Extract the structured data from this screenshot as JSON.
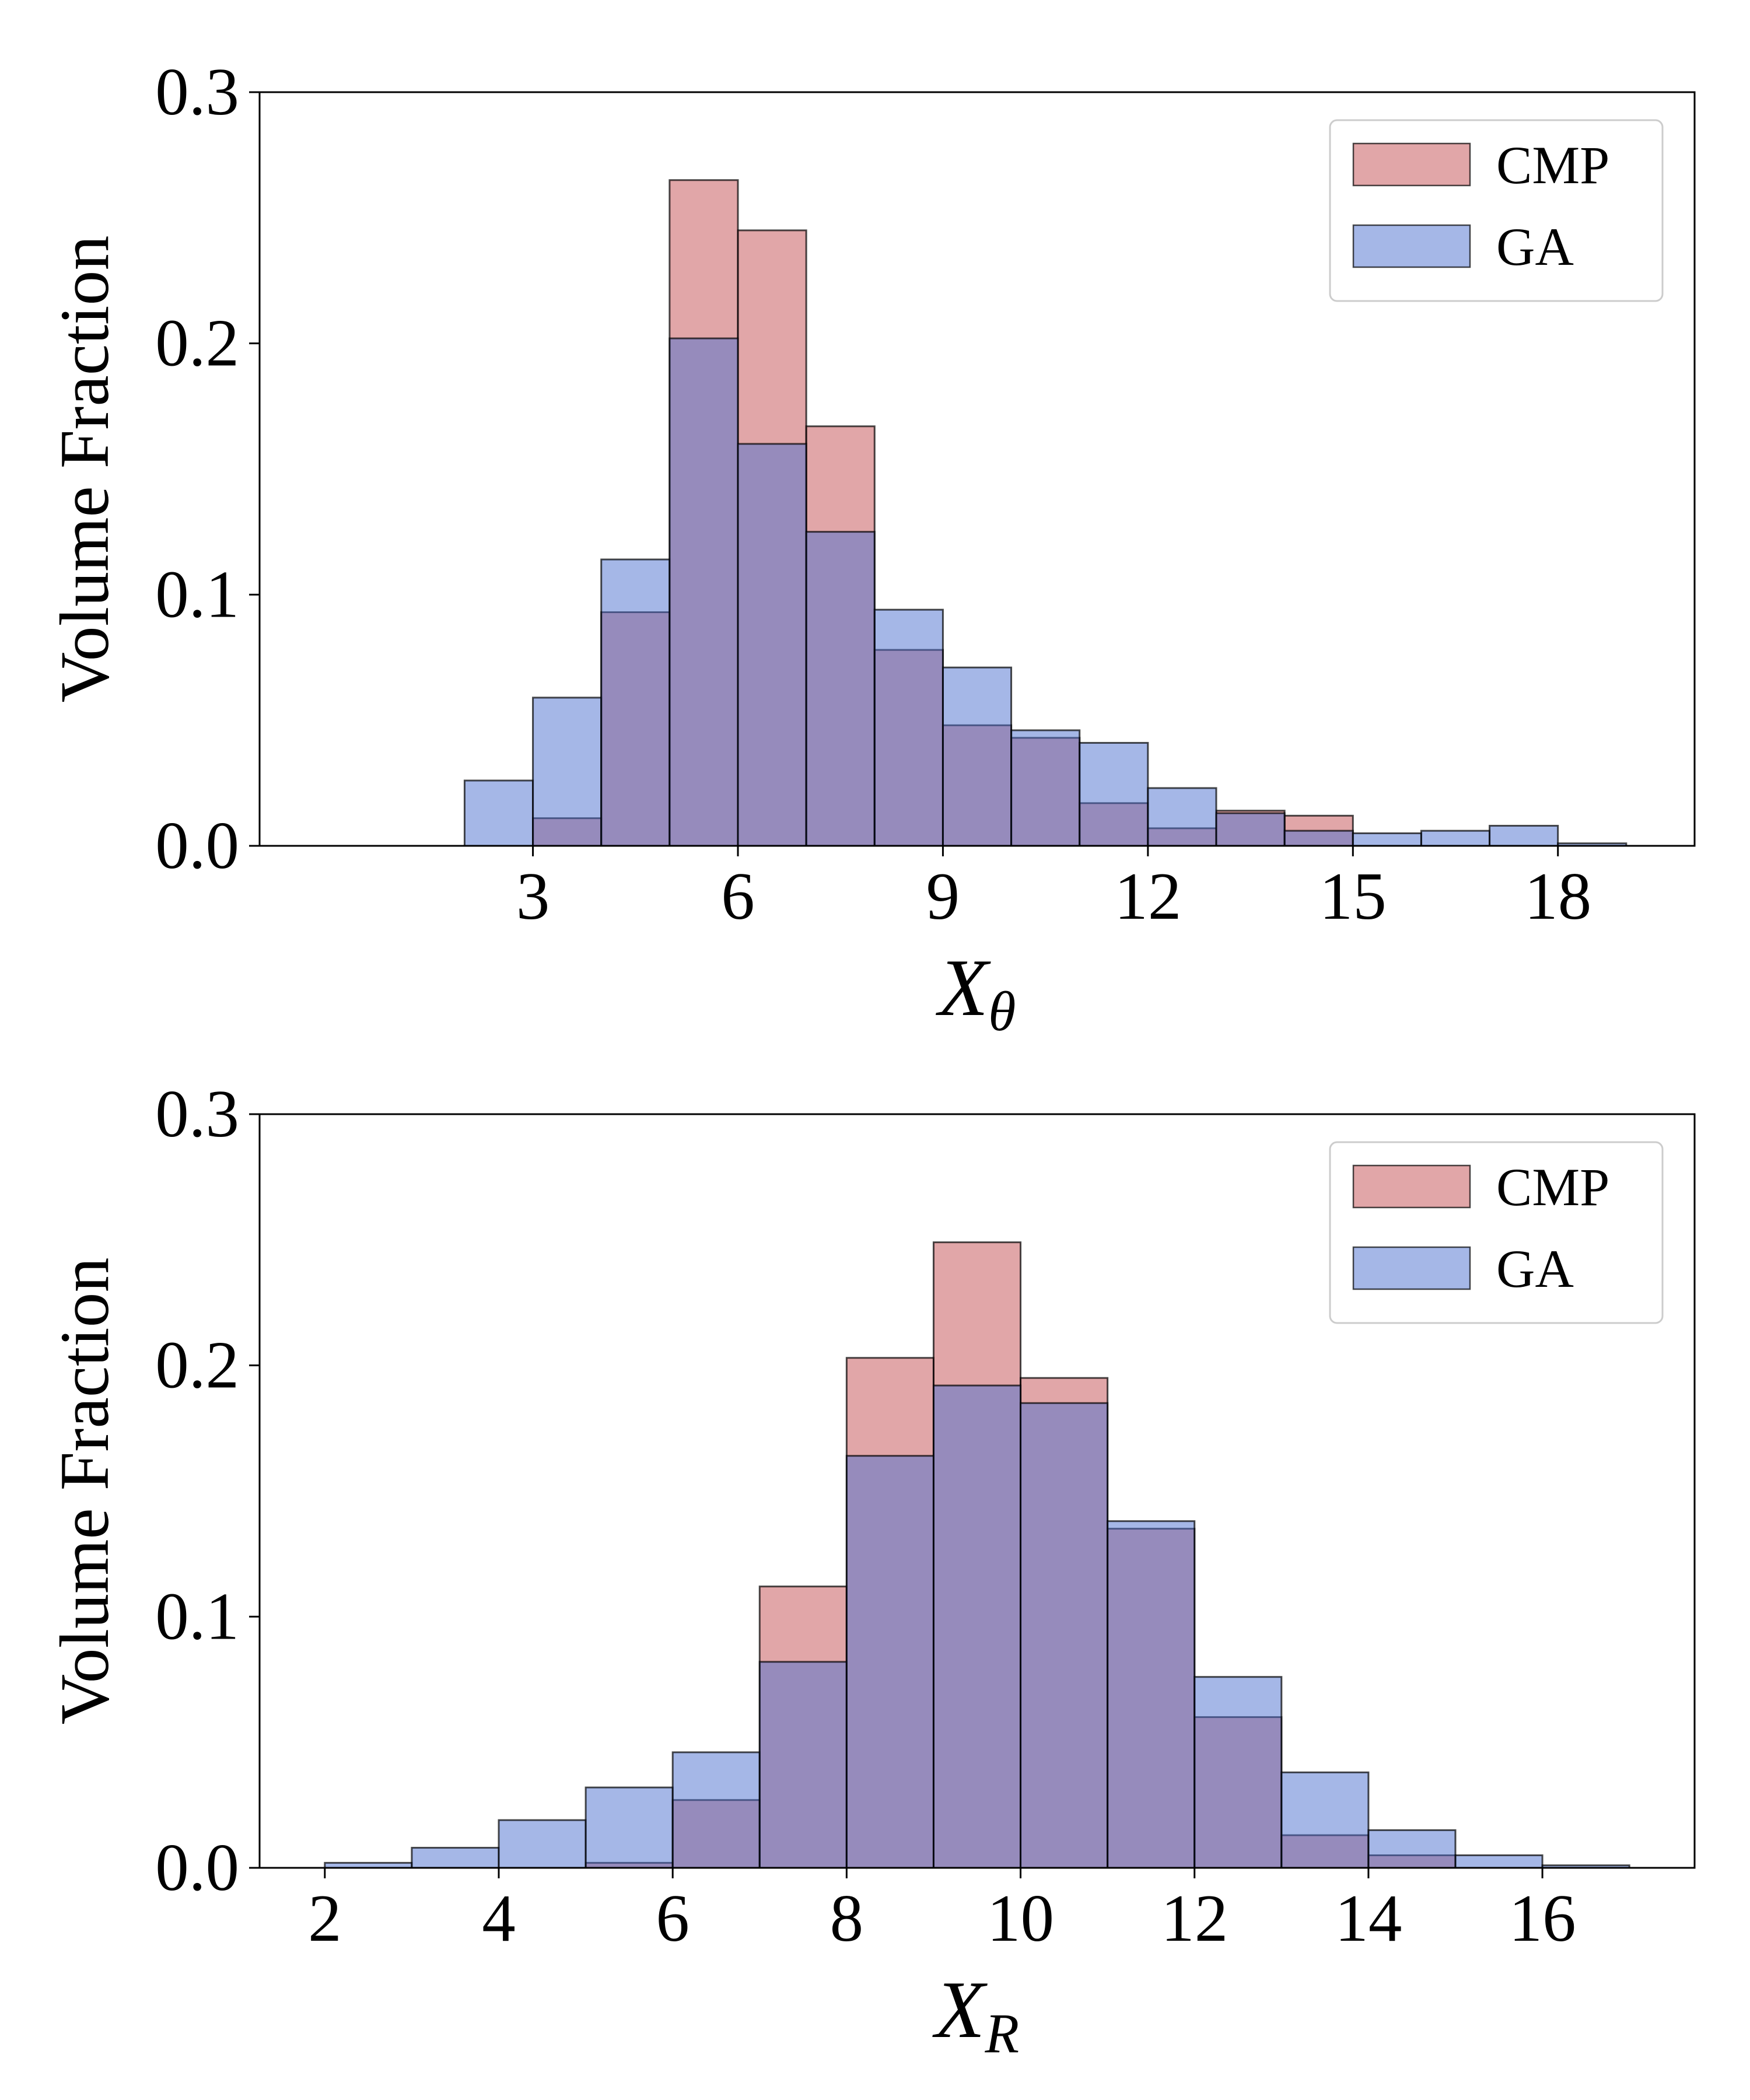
{
  "colors": {
    "CMP": "#c44e52",
    "GA": "#4c6fd0",
    "bar_edge": "#000000"
  },
  "chart_data": [
    {
      "type": "bar",
      "histogram": true,
      "xlabel": "X",
      "xlabel_sub": "θ",
      "ylabel": "Volume Fraction",
      "ylim": [
        0,
        0.3
      ],
      "xlim": [
        -1.0,
        20.0
      ],
      "yticks": [
        0.0,
        0.1,
        0.2,
        0.3
      ],
      "ytick_labels": [
        "0.0",
        "0.1",
        "0.2",
        "0.3"
      ],
      "xticks": [
        3,
        6,
        9,
        12,
        15,
        18
      ],
      "xtick_labels": [
        "3",
        "6",
        "9",
        "12",
        "15",
        "18"
      ],
      "legend_position": "top-right",
      "bin_edges": [
        2,
        3,
        4,
        5,
        6,
        7,
        8,
        9,
        10,
        11,
        12,
        13,
        14,
        15,
        16,
        17,
        18,
        19
      ],
      "series": [
        {
          "name": "CMP",
          "values": [
            0.0,
            0.011,
            0.093,
            0.265,
            0.245,
            0.167,
            0.078,
            0.048,
            0.043,
            0.017,
            0.007,
            0.014,
            0.012,
            0.0,
            0.0,
            0.0,
            0.0
          ]
        },
        {
          "name": "GA",
          "values": [
            0.026,
            0.059,
            0.114,
            0.202,
            0.16,
            0.125,
            0.094,
            0.071,
            0.046,
            0.041,
            0.023,
            0.013,
            0.006,
            0.005,
            0.006,
            0.008,
            0.001
          ]
        }
      ]
    },
    {
      "type": "bar",
      "histogram": true,
      "xlabel": "X",
      "xlabel_sub": "R",
      "ylabel": "Volume Fraction",
      "ylim": [
        0,
        0.3
      ],
      "xlim": [
        1.25,
        17.75
      ],
      "yticks": [
        0.0,
        0.1,
        0.2,
        0.3
      ],
      "ytick_labels": [
        "0.0",
        "0.1",
        "0.2",
        "0.3"
      ],
      "xticks": [
        2,
        4,
        6,
        8,
        10,
        12,
        14,
        16
      ],
      "xtick_labels": [
        "2",
        "4",
        "6",
        "8",
        "10",
        "12",
        "14",
        "16"
      ],
      "legend_position": "top-right",
      "bin_edges": [
        2,
        3,
        4,
        5,
        6,
        7,
        8,
        9,
        10,
        11,
        12,
        13,
        14,
        15,
        16,
        17
      ],
      "series": [
        {
          "name": "CMP",
          "values": [
            0.0,
            0.0,
            0.0,
            0.002,
            0.027,
            0.112,
            0.203,
            0.249,
            0.195,
            0.135,
            0.06,
            0.013,
            0.005,
            0.0,
            0.0
          ]
        },
        {
          "name": "GA",
          "values": [
            0.002,
            0.008,
            0.019,
            0.032,
            0.046,
            0.082,
            0.164,
            0.192,
            0.185,
            0.138,
            0.076,
            0.038,
            0.015,
            0.005,
            0.001
          ]
        }
      ]
    }
  ]
}
